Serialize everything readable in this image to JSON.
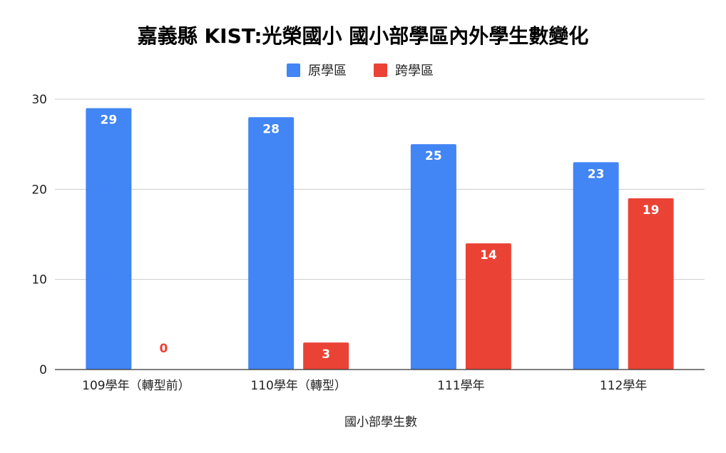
{
  "chart_data": {
    "type": "bar",
    "title": "嘉義縣 KIST:光榮國小 國小部學區內外學生數變化",
    "xlabel": "國小部學生數",
    "ylabel": "",
    "categories": [
      "109學年（轉型前）",
      "110學年（轉型）",
      "111學年",
      "112學年"
    ],
    "series": [
      {
        "name": "原學區",
        "color": "#4285F4",
        "values": [
          29,
          28,
          25,
          23
        ]
      },
      {
        "name": "跨學區",
        "color": "#EA4335",
        "values": [
          0,
          3,
          14,
          19
        ]
      }
    ],
    "ylim": [
      0,
      30
    ],
    "yticks": [
      0,
      10,
      20,
      30
    ],
    "grid": true,
    "legend_position": "top",
    "data_labels": true
  }
}
